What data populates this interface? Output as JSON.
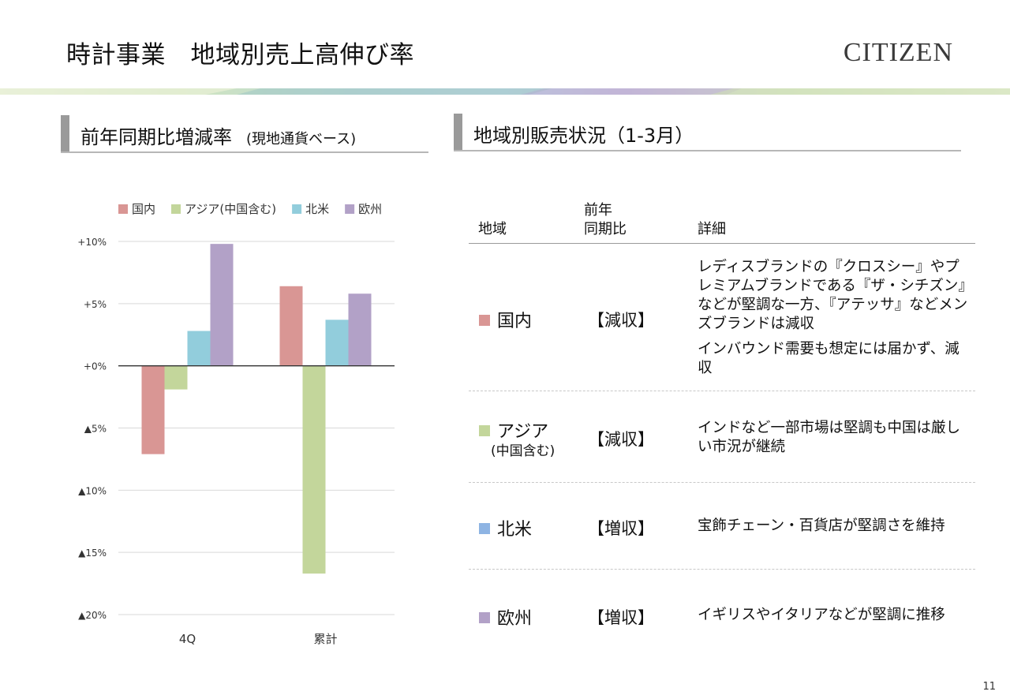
{
  "header": {
    "title": "時計事業　地域別売上高伸び率",
    "brand": "CITIZEN"
  },
  "left_section": {
    "title": "前年同期比増減率",
    "subtitle": "(現地通貨ベース)"
  },
  "right_section": {
    "title": "地域別販売状況（1-3月）"
  },
  "chart_data": {
    "type": "bar",
    "categories": [
      "4Q",
      "累計"
    ],
    "series": [
      {
        "name": "国内",
        "color": "#d99694",
        "values": [
          -7.1,
          6.4
        ]
      },
      {
        "name": "アジア(中国含む)",
        "color": "#c3d69b",
        "values": [
          -1.9,
          -16.7
        ]
      },
      {
        "name": "北米",
        "color": "#92cddc",
        "values": [
          2.8,
          3.7
        ]
      },
      {
        "name": "欧州",
        "color": "#b2a1c7",
        "values": [
          9.8,
          5.8
        ]
      }
    ],
    "ylim": [
      -20,
      10
    ],
    "yticks": [
      10,
      5,
      0,
      -5,
      -10,
      -15,
      -20
    ],
    "ytick_labels": [
      "+10%",
      "+5%",
      "+0%",
      "▲5%",
      "▲10%",
      "▲15%",
      "▲20%"
    ],
    "legend_position": "top",
    "grid": true,
    "title": "",
    "xlabel": "",
    "ylabel": ""
  },
  "table": {
    "headers": {
      "region": "地域",
      "yoy_line1": "前年",
      "yoy_line2": "同期比",
      "details": "詳細"
    },
    "rows": [
      {
        "region": "国内",
        "region_sub": "",
        "color": "#d99694",
        "status": "【減収】",
        "details": [
          "レディスブランドの『クロスシー』やプレミアムブランドである『ザ・シチズン』などが堅調な一方、『アテッサ』などメンズブランドは減収",
          "インバウンド需要も想定には届かず、減収"
        ]
      },
      {
        "region": "アジア",
        "region_sub": "(中国含む)",
        "color": "#c3d69b",
        "status": "【減収】",
        "details": [
          "インドなど一部市場は堅調も中国は厳しい市況が継続"
        ]
      },
      {
        "region": "北米",
        "region_sub": "",
        "color": "#8eb4e3",
        "status": "【増収】",
        "details": [
          "宝飾チェーン・百貨店が堅調さを維持"
        ]
      },
      {
        "region": "欧州",
        "region_sub": "",
        "color": "#b2a1c7",
        "status": "【増収】",
        "details": [
          "イギリスやイタリアなどが堅調に推移"
        ]
      }
    ]
  },
  "page_number": "11"
}
